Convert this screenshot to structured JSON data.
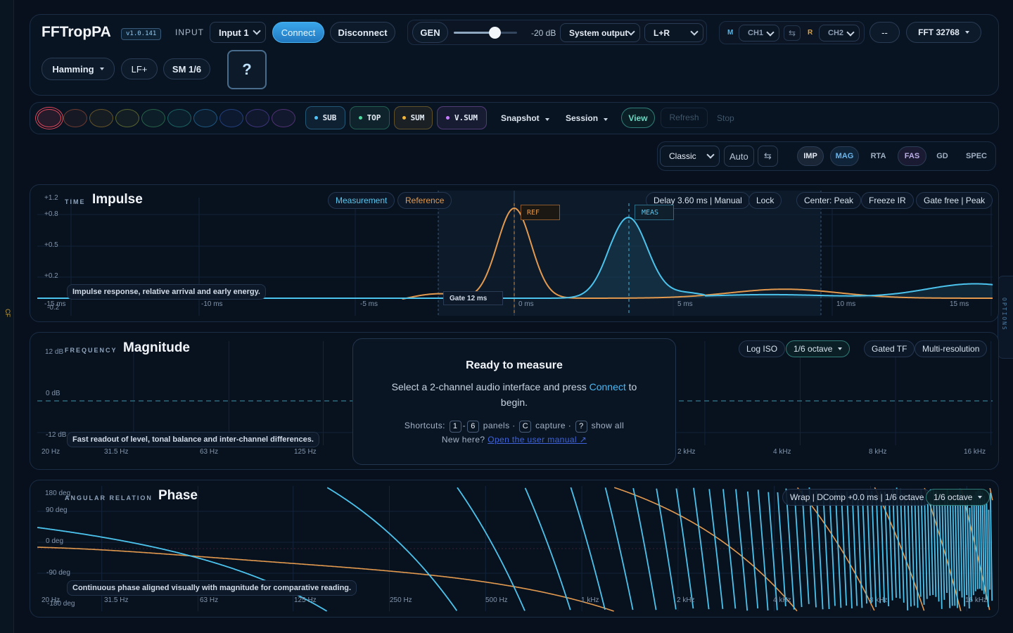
{
  "edges": {
    "left_label": "CF",
    "right_label": "OPTIONS"
  },
  "header": {
    "app_title": "FFTropPA",
    "version": "v1.0.141",
    "input_label": "INPUT",
    "input_select": "Input 1",
    "connect_label": "Connect",
    "disconnect_label": "Disconnect",
    "gen_label": "GEN",
    "gen_level_fraction": 0.64,
    "gen_db": "-20 dB",
    "output_select": "System output",
    "channel_select": "L+R",
    "m_label": "M",
    "ch1_select": "CH1",
    "r_label": "R",
    "ch2_select": "CH2",
    "swap_icon": "swap-arrows-icon",
    "dash_label": "--",
    "fft_label": "FFT 32768",
    "window_label": "Hamming",
    "lf_label": "LF+",
    "smoothing_label": "SM 1/6",
    "help_label": "?"
  },
  "toolbar": {
    "slot_colors": [
      "#e0485e",
      "#c25a3c",
      "#b38a2e",
      "#9aa83a",
      "#3fa26a",
      "#2aa39a",
      "#2f8fcf",
      "#3a63c8",
      "#6b4fc4",
      "#8a4bb8"
    ],
    "groups": [
      {
        "label": "SUB",
        "color": "#4fc3ff"
      },
      {
        "label": "TOP",
        "color": "#4fd7a0"
      },
      {
        "label": "SUM",
        "color": "#f0b43c"
      },
      {
        "label": "V.SUM",
        "color": "#c77dff"
      }
    ],
    "snapshot_label": "Snapshot",
    "session_label": "Session",
    "view_label": "View",
    "refresh_label": "Refresh",
    "stop_label": "Stop"
  },
  "view_bar": {
    "layout_select": "Classic",
    "auto_label": "Auto",
    "swap_icon": "swap-arrows-icon",
    "tabs": [
      "IMP",
      "MAG",
      "RTA",
      "FAS",
      "GD",
      "SPEC"
    ]
  },
  "impulse": {
    "eyebrow": "TIME",
    "title": "Impulse",
    "legend_measurement": "Measurement",
    "legend_reference": "Reference",
    "delay_label": "Delay 3.60 ms | Manual",
    "lock_label": "Lock",
    "center_label": "Center: Peak",
    "freeze_label": "Freeze IR",
    "gate_label": "Gate free | Peak",
    "ref_marker": "REF",
    "meas_marker": "MEAS",
    "gate_box": "Gate 12 ms",
    "hint": "Impulse response, relative arrival and early energy.",
    "y_ticks": [
      "+1.2",
      "+0.8",
      "+0.5",
      "+0.2",
      "-0.2"
    ],
    "x_ticks": [
      "-15 ms",
      "-10 ms",
      "-5 ms",
      "0 ms",
      "5 ms",
      "10 ms",
      "15 ms"
    ]
  },
  "magnitude": {
    "eyebrow": "FREQUENCY",
    "title": "Magnitude",
    "log_iso_label": "Log ISO",
    "octave_label": "1/6 octave",
    "gated_tf_label": "Gated TF",
    "multi_res_label": "Multi-resolution",
    "y_ticks": [
      "12 dB",
      "0 dB",
      "-12 dB"
    ],
    "x_ticks_left": [
      "20 Hz",
      "31.5 Hz",
      "63 Hz",
      "125 Hz"
    ],
    "x_ticks_right": [
      "2 kHz",
      "4 kHz",
      "8 kHz",
      "16 kHz"
    ],
    "hint": "Fast readout of level, tonal balance and inter-channel differences."
  },
  "ready": {
    "title": "Ready to measure",
    "body_prefix": "Select a 2-channel audio interface and press",
    "body_link": "Connect",
    "body_suffix": "to begin.",
    "shortcuts_label": "Shortcuts:",
    "key_1": "1",
    "key_sep": "-",
    "key_6": "6",
    "panels_label": "panels ·",
    "key_c": "C",
    "capture_label": "capture ·",
    "key_q": "?",
    "show_all_label": "show all",
    "new_here": "New here?",
    "manual_link": "Open the user manual ↗"
  },
  "phase": {
    "eyebrow": "ANGULAR RELATION",
    "title": "Phase",
    "wrap_label": "Wrap | DComp +0.0 ms | 1/6 octave",
    "octave_label": "1/6 octave",
    "y_ticks": [
      "180 deg",
      "90 deg",
      "0 deg",
      "-90 deg",
      "-180 deg"
    ],
    "x_ticks": [
      "20 Hz",
      "31.5 Hz",
      "63 Hz",
      "125 Hz",
      "250 Hz",
      "500 Hz",
      "1 kHz",
      "2 kHz",
      "4 kHz",
      "8 kHz",
      "16 kHz"
    ],
    "hint": "Continuous phase aligned visually with magnitude for comparative reading."
  },
  "colors": {
    "measurement": "#4cc3ec",
    "reference": "#e39a4f",
    "accent": "#2a8fd6"
  }
}
